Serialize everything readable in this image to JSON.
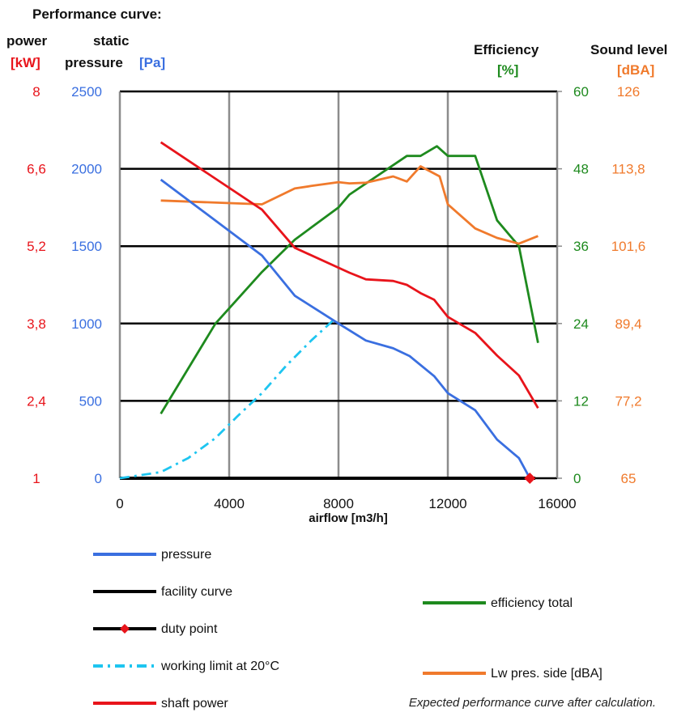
{
  "chart_data": {
    "type": "line",
    "title": "Performance curve:",
    "xlabel": "airflow [m3/h]",
    "xlim": [
      0,
      16000
    ],
    "x_ticks": [
      "0",
      "4000",
      "8000",
      "12000",
      "16000"
    ],
    "grid": true,
    "axes": {
      "power": {
        "title": "power",
        "unit": "[kW]",
        "color": "#e8141b",
        "ticks": [
          "1",
          "2,4",
          "3,8",
          "5,2",
          "6,6",
          "8"
        ],
        "ylim": [
          1,
          8
        ]
      },
      "pressure": {
        "title_line1": "static",
        "title_line2": "pressure",
        "unit": "[Pa]",
        "color": "#3a6fe0",
        "ticks": [
          "0",
          "500",
          "1000",
          "1500",
          "2000",
          "2500"
        ],
        "ylim": [
          0,
          2500
        ]
      },
      "efficiency": {
        "title": "Efficiency",
        "unit": "[%]",
        "color": "#1e8a1e",
        "ticks": [
          "0",
          "12",
          "24",
          "36",
          "48",
          "60"
        ],
        "ylim": [
          0,
          60
        ]
      },
      "sound": {
        "title": "Sound level",
        "unit": "[dBA]",
        "color": "#f07a2c",
        "ticks": [
          "65",
          "77,2",
          "89,4",
          "101,6",
          "113,8",
          "126"
        ],
        "ylim": [
          65,
          126
        ]
      }
    },
    "series": [
      {
        "name": "pressure",
        "axis": "pressure",
        "color": "#3a6fe0",
        "style": "solid",
        "x": [
          1500,
          5200,
          6400,
          8000,
          9000,
          10000,
          10600,
          11500,
          12000,
          13000,
          13800,
          14600,
          15000
        ],
        "y": [
          1930,
          1440,
          1180,
          1000,
          890,
          840,
          790,
          660,
          550,
          440,
          250,
          130,
          0
        ]
      },
      {
        "name": "facility curve",
        "axis": "pressure",
        "color": "#000000",
        "style": "solid",
        "x": [
          0,
          15200
        ],
        "y": [
          0,
          0
        ]
      },
      {
        "name": "duty point",
        "axis": "pressure",
        "color": "#e8141b",
        "style": "marker",
        "x": [
          15000
        ],
        "y": [
          0
        ]
      },
      {
        "name": "working limit at 20°C",
        "axis": "pressure",
        "color": "#1ec5f0",
        "style": "dashdot",
        "x": [
          0,
          1500,
          2500,
          3500,
          4300,
          5200,
          6100,
          7000,
          7800
        ],
        "y": [
          0,
          40,
          130,
          260,
          400,
          550,
          730,
          890,
          1020
        ]
      },
      {
        "name": "shaft power",
        "axis": "power",
        "color": "#e8141b",
        "style": "solid",
        "x": [
          1500,
          5200,
          6400,
          8400,
          9000,
          10000,
          10500,
          11000,
          11500,
          12000,
          13000,
          13800,
          14600,
          15300
        ],
        "y": [
          7.08,
          5.86,
          5.17,
          4.72,
          4.6,
          4.57,
          4.5,
          4.35,
          4.23,
          3.92,
          3.63,
          3.22,
          2.86,
          2.27
        ]
      },
      {
        "name": "efficiency total",
        "axis": "efficiency",
        "color": "#1e8a1e",
        "style": "solid",
        "x": [
          1500,
          3500,
          5200,
          6400,
          8000,
          8400,
          10500,
          11000,
          11600,
          12000,
          12600,
          13000,
          13800,
          14600,
          15300
        ],
        "y": [
          10,
          24,
          32,
          37,
          42,
          44,
          50,
          50,
          51.5,
          50,
          50,
          50,
          40,
          36,
          21
        ]
      },
      {
        "name": "Lw pres. side [dBA]",
        "axis": "sound",
        "color": "#f07a2c",
        "style": "solid",
        "x": [
          1500,
          5200,
          6400,
          7000,
          8000,
          8400,
          9000,
          9600,
          10000,
          10500,
          11000,
          11700,
          12000,
          13000,
          13800,
          14600,
          15300
        ],
        "y": [
          108.8,
          108.2,
          110.7,
          111.1,
          111.7,
          111.5,
          111.6,
          112.2,
          112.6,
          111.8,
          114.2,
          112.6,
          108.2,
          104.4,
          102.9,
          102,
          103.2
        ]
      }
    ],
    "footnote": "Expected performance curve after calculation."
  }
}
